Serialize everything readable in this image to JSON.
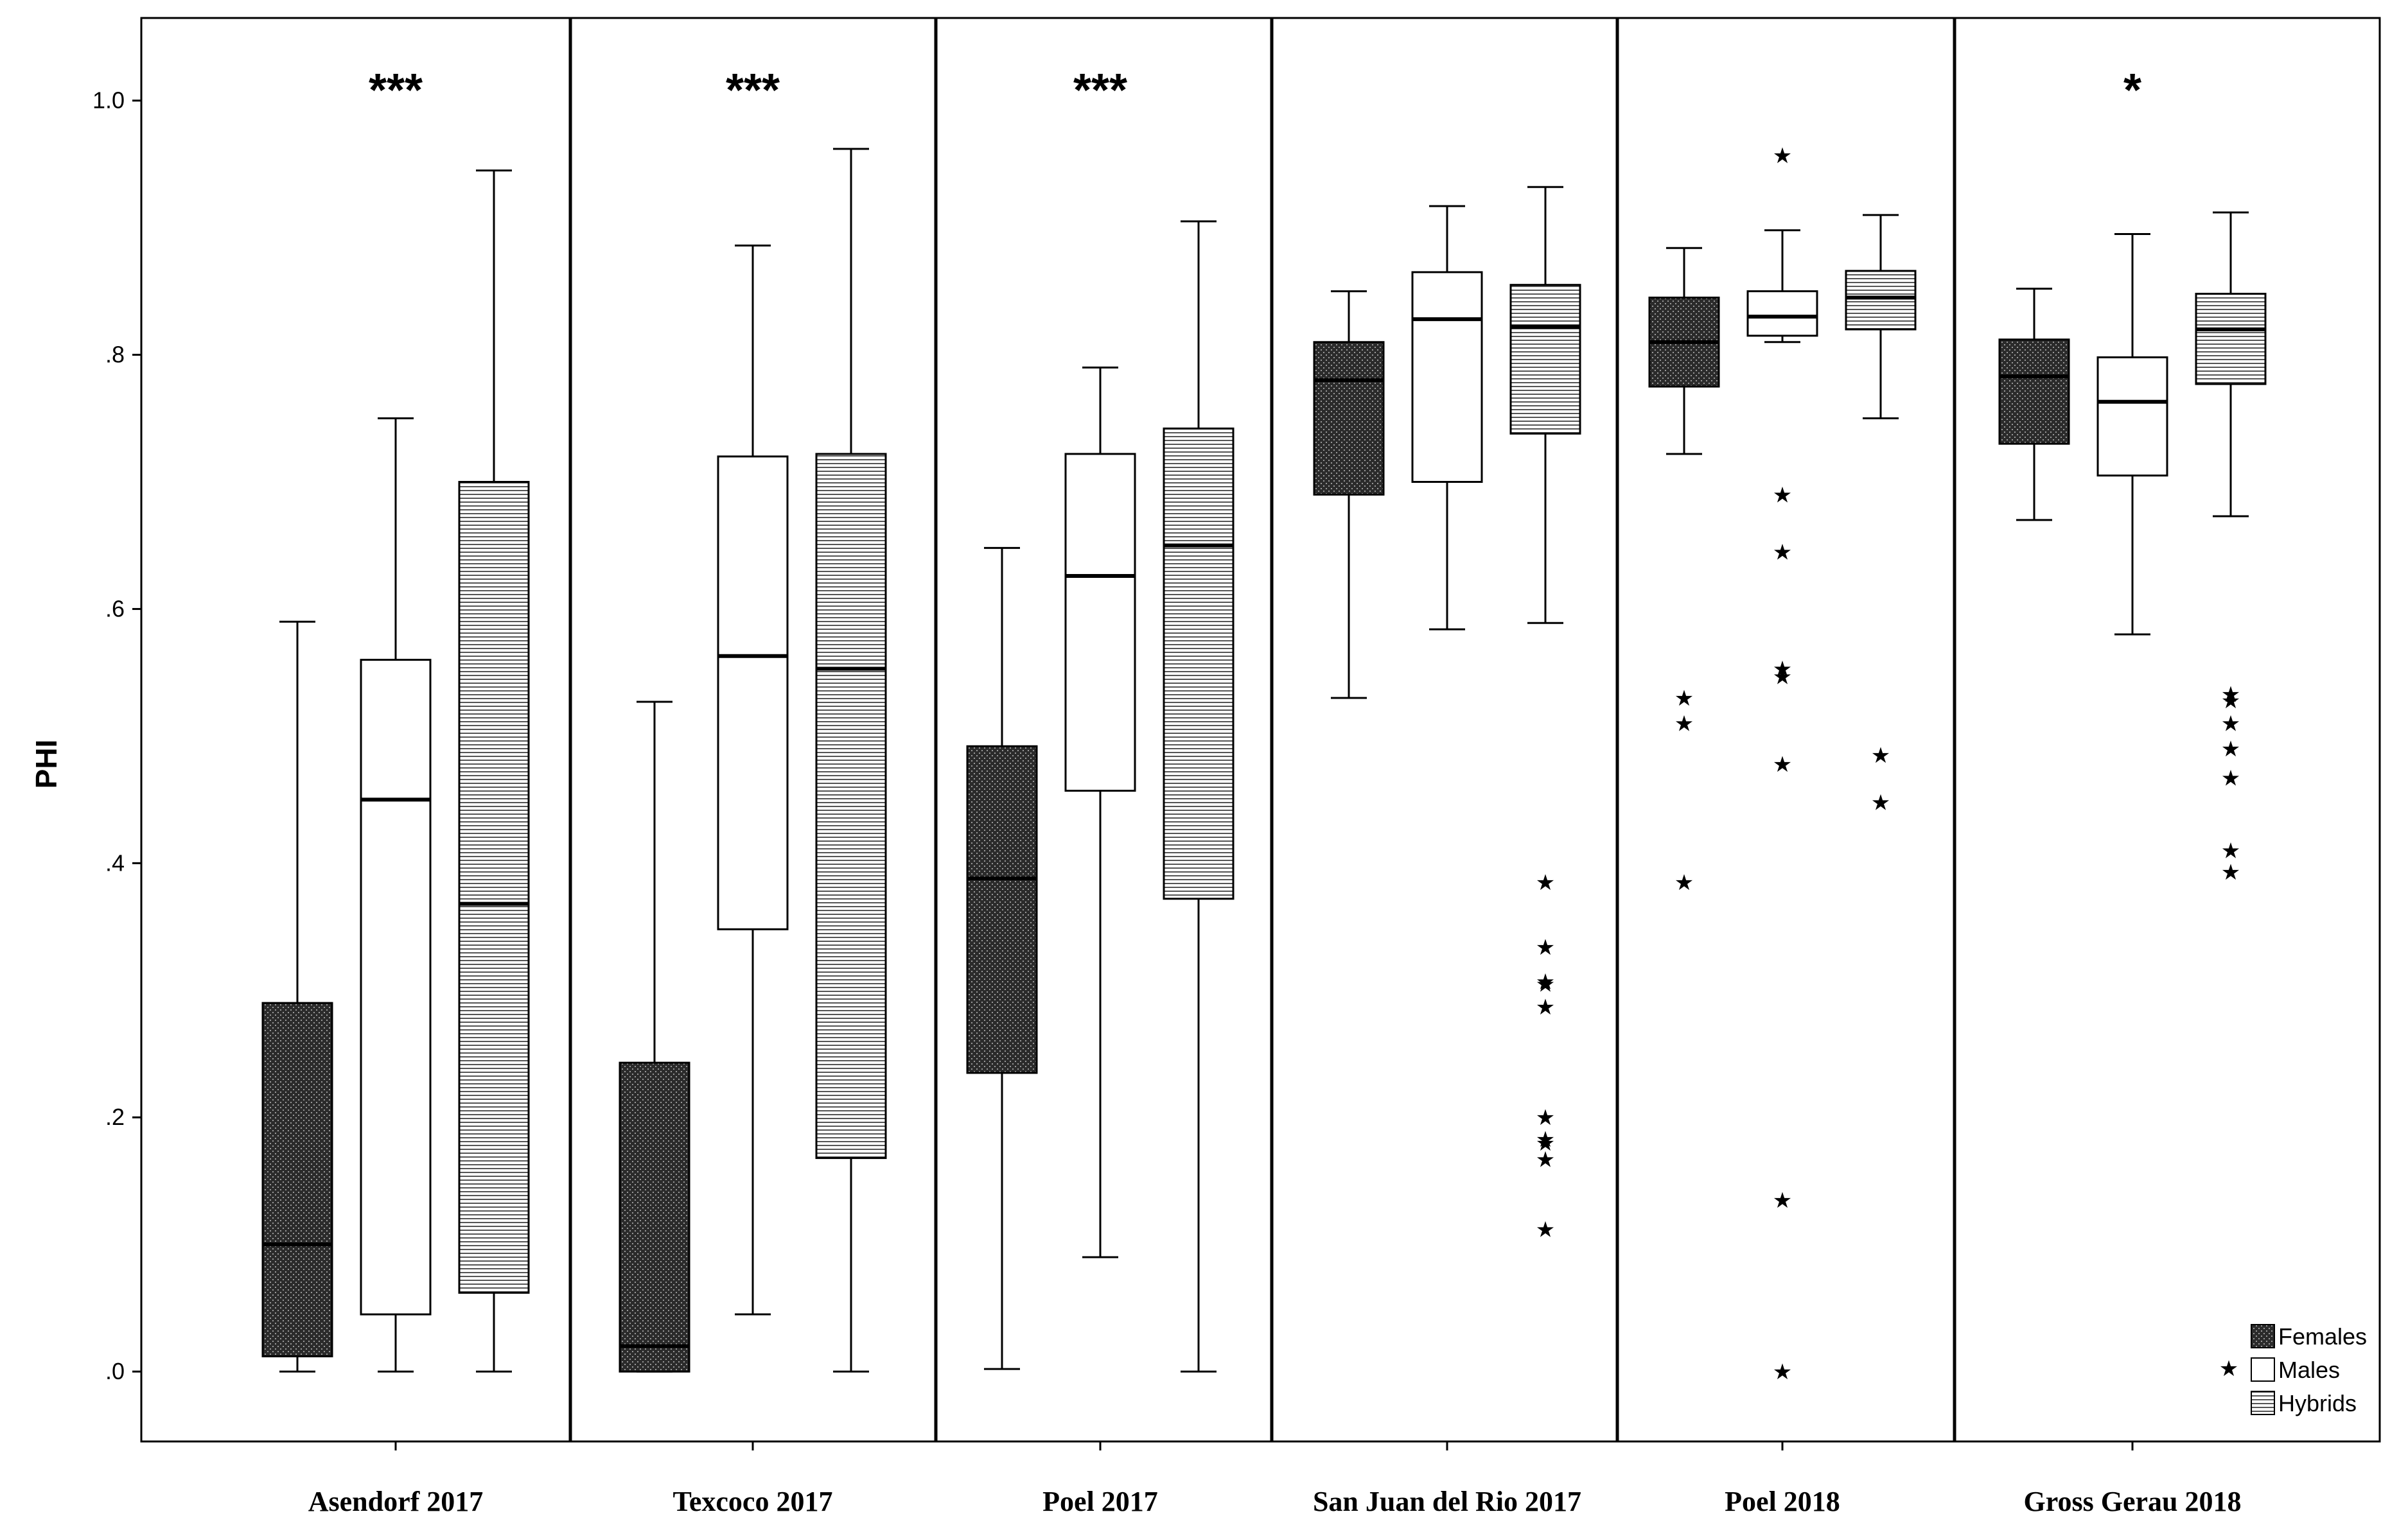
{
  "chart_data": {
    "type": "box",
    "ylabel": "PHI",
    "xlabel": "",
    "ylim": [
      -0.055,
      1.065
    ],
    "yticks": [
      {
        "value": 0.0,
        "label": ".0"
      },
      {
        "value": 0.2,
        "label": ".2"
      },
      {
        "value": 0.4,
        "label": ".4"
      },
      {
        "value": 0.6,
        "label": ".6"
      },
      {
        "value": 0.8,
        "label": ".8"
      },
      {
        "value": 1.0,
        "label": "1.0"
      }
    ],
    "legend": {
      "position": "bottom-right",
      "entries": [
        {
          "name": "Females",
          "pattern": "dark-dotted"
        },
        {
          "name": "Males",
          "pattern": "white"
        },
        {
          "name": "Hybrids",
          "pattern": "horizontal-stripes"
        }
      ],
      "outlier_marker": "★"
    },
    "colors": {
      "females": "#3a3a3a",
      "males": "#ffffff",
      "hybrids": "#ffffff",
      "stroke": "#000000"
    },
    "groups": [
      {
        "label": "Asendorf 2017",
        "significance": "***",
        "boxes": [
          {
            "series": "Females",
            "min": 0.0,
            "q1": 0.012,
            "median": 0.1,
            "q3": 0.29,
            "max": 0.59,
            "outliers": []
          },
          {
            "series": "Males",
            "min": 0.0,
            "q1": 0.045,
            "median": 0.45,
            "q3": 0.56,
            "max": 0.75,
            "outliers": []
          },
          {
            "series": "Hybrids",
            "min": 0.0,
            "q1": 0.062,
            "median": 0.368,
            "q3": 0.7,
            "max": 0.945,
            "outliers": []
          }
        ]
      },
      {
        "label": "Texcoco 2017",
        "significance": "***",
        "boxes": [
          {
            "series": "Females",
            "min": 0.0,
            "q1": 0.0,
            "median": 0.02,
            "q3": 0.243,
            "max": 0.527,
            "outliers": []
          },
          {
            "series": "Males",
            "min": 0.045,
            "q1": 0.348,
            "median": 0.563,
            "q3": 0.72,
            "max": 0.886,
            "outliers": []
          },
          {
            "series": "Hybrids",
            "min": 0.0,
            "q1": 0.168,
            "median": 0.553,
            "q3": 0.722,
            "max": 0.962,
            "outliers": []
          }
        ]
      },
      {
        "label": "Poel 2017",
        "significance": "***",
        "boxes": [
          {
            "series": "Females",
            "min": 0.002,
            "q1": 0.235,
            "median": 0.388,
            "q3": 0.492,
            "max": 0.648,
            "outliers": []
          },
          {
            "series": "Males",
            "min": 0.09,
            "q1": 0.457,
            "median": 0.626,
            "q3": 0.722,
            "max": 0.79,
            "outliers": []
          },
          {
            "series": "Hybrids",
            "min": 0.0,
            "q1": 0.372,
            "median": 0.65,
            "q3": 0.742,
            "max": 0.905,
            "outliers": []
          }
        ]
      },
      {
        "label": "San Juan del Rio 2017",
        "significance": "",
        "boxes": [
          {
            "series": "Females",
            "min": 0.53,
            "q1": 0.69,
            "median": 0.78,
            "q3": 0.81,
            "max": 0.85,
            "outliers": []
          },
          {
            "series": "Males",
            "min": 0.584,
            "q1": 0.7,
            "median": 0.828,
            "q3": 0.865,
            "max": 0.917,
            "outliers": []
          },
          {
            "series": "Hybrids",
            "min": 0.589,
            "q1": 0.738,
            "median": 0.822,
            "q3": 0.855,
            "max": 0.932,
            "outliers": [
              0.385,
              0.334,
              0.307,
              0.305,
              0.287,
              0.2,
              0.183,
              0.18,
              0.167,
              0.112
            ]
          }
        ]
      },
      {
        "label": "Poel 2018",
        "significance": "",
        "boxes": [
          {
            "series": "Females",
            "min": 0.722,
            "q1": 0.775,
            "median": 0.81,
            "q3": 0.845,
            "max": 0.884,
            "outliers": [
              0.53,
              0.51,
              0.385
            ]
          },
          {
            "series": "Males",
            "min": 0.81,
            "q1": 0.815,
            "median": 0.83,
            "q3": 0.85,
            "max": 0.898,
            "outliers": [
              0.957,
              0.69,
              0.645,
              0.553,
              0.547,
              0.478,
              0.135,
              0.0
            ]
          },
          {
            "series": "Hybrids",
            "min": 0.75,
            "q1": 0.82,
            "median": 0.845,
            "q3": 0.866,
            "max": 0.91,
            "outliers": [
              0.485,
              0.448
            ]
          }
        ]
      },
      {
        "label": "Gross Gerau 2018",
        "significance": "*",
        "boxes": [
          {
            "series": "Females",
            "min": 0.67,
            "q1": 0.73,
            "median": 0.783,
            "q3": 0.812,
            "max": 0.852,
            "outliers": []
          },
          {
            "series": "Males",
            "min": 0.58,
            "q1": 0.705,
            "median": 0.763,
            "q3": 0.798,
            "max": 0.895,
            "outliers": []
          },
          {
            "series": "Hybrids",
            "min": 0.673,
            "q1": 0.777,
            "median": 0.82,
            "q3": 0.848,
            "max": 0.912,
            "outliers": [
              0.533,
              0.528,
              0.51,
              0.49,
              0.467,
              0.41,
              0.393
            ]
          }
        ]
      }
    ]
  }
}
